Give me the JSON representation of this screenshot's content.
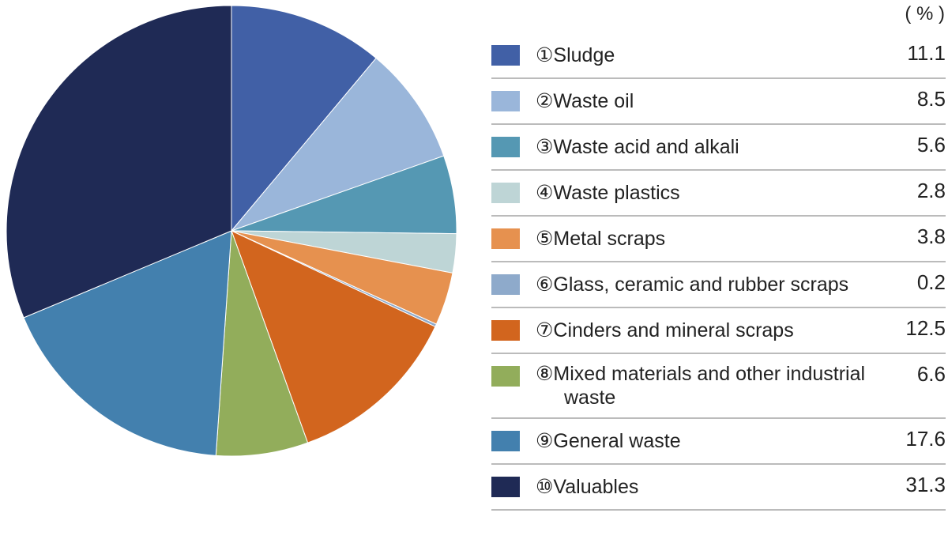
{
  "chart_data": {
    "type": "pie",
    "unit_label": "( % )",
    "categories": [
      "①Sludge",
      "②Waste oil",
      "③Waste acid and alkali",
      "④Waste plastics",
      "⑤Metal scraps",
      "⑥Glass, ceramic and rubber scraps",
      "⑦Cinders and mineral scraps",
      "⑧Mixed materials and other industrial waste",
      "⑨General waste",
      "⑩Valuables"
    ],
    "values": [
      11.1,
      8.5,
      5.6,
      2.8,
      3.8,
      0.2,
      12.5,
      6.6,
      17.6,
      31.3
    ],
    "colors": [
      "#4160a6",
      "#9ab6da",
      "#5598b3",
      "#bed5d6",
      "#e6914f",
      "#8eaacb",
      "#d2651e",
      "#92ad5b",
      "#4380ae",
      "#1f2a55"
    ]
  }
}
